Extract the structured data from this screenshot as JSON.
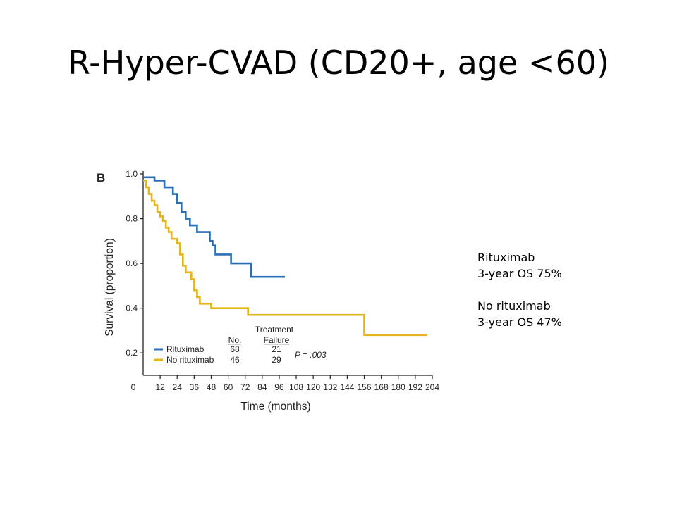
{
  "title": "R-Hyper-CVAD (CD20+, age <60)",
  "side_note": [
    "Rituximab",
    "3-year OS 75%",
    "",
    "No rituximab",
    "3-year OS 47%"
  ],
  "chart_data": {
    "type": "line",
    "panel_label": "B",
    "xlabel": "Time (months)",
    "ylabel": "Survival (proportion)",
    "xlim": [
      0,
      204
    ],
    "ylim": [
      0.1,
      1.0
    ],
    "x_ticks": [
      12,
      24,
      36,
      48,
      60,
      72,
      84,
      96,
      108,
      120,
      132,
      144,
      156,
      168,
      180,
      192,
      204
    ],
    "y_ticks": [
      1.0,
      0.8,
      0.6,
      0.4,
      0.2
    ],
    "x_zero_label": "0",
    "y_tick_labels": [
      "1.0",
      "0.8",
      "0.6",
      "0.4",
      "0.2"
    ],
    "x_tick_labels": [
      "12",
      "24",
      "36",
      "48",
      "60",
      "72",
      "84",
      "96",
      "108",
      "120",
      "132",
      "144",
      "156",
      "168",
      "180",
      "192",
      "204"
    ],
    "colors": {
      "Rituximab": "#2a6fb5",
      "No rituximab": "#e3b41b"
    },
    "series": [
      {
        "name": "Rituximab",
        "x": [
          0,
          8,
          15,
          21,
          24,
          27,
          30,
          33,
          38,
          44,
          47,
          49,
          51,
          54,
          62,
          76,
          100
        ],
        "y": [
          0.985,
          0.97,
          0.94,
          0.91,
          0.87,
          0.83,
          0.8,
          0.77,
          0.74,
          0.74,
          0.7,
          0.68,
          0.64,
          0.64,
          0.6,
          0.54,
          0.54
        ]
      },
      {
        "name": "No rituximab",
        "x": [
          0,
          2,
          4,
          6,
          8,
          10,
          12,
          14,
          16,
          18,
          20,
          24,
          26,
          28,
          30,
          34,
          36,
          38,
          40,
          48,
          74,
          156,
          200
        ],
        "y": [
          0.97,
          0.94,
          0.91,
          0.88,
          0.86,
          0.83,
          0.81,
          0.79,
          0.76,
          0.74,
          0.71,
          0.69,
          0.64,
          0.59,
          0.56,
          0.53,
          0.48,
          0.45,
          0.42,
          0.4,
          0.37,
          0.28,
          0.28
        ]
      }
    ],
    "legend": {
      "header_treatment": "Treatment",
      "header_no": "No.",
      "header_failure": "Failure",
      "rows": [
        {
          "label": "Rituximab",
          "no": "68",
          "failure": "21"
        },
        {
          "label": "No rituximab",
          "no": "46",
          "failure": "29"
        }
      ],
      "p_value": "P = .003",
      "placement": "bottom-left"
    }
  }
}
